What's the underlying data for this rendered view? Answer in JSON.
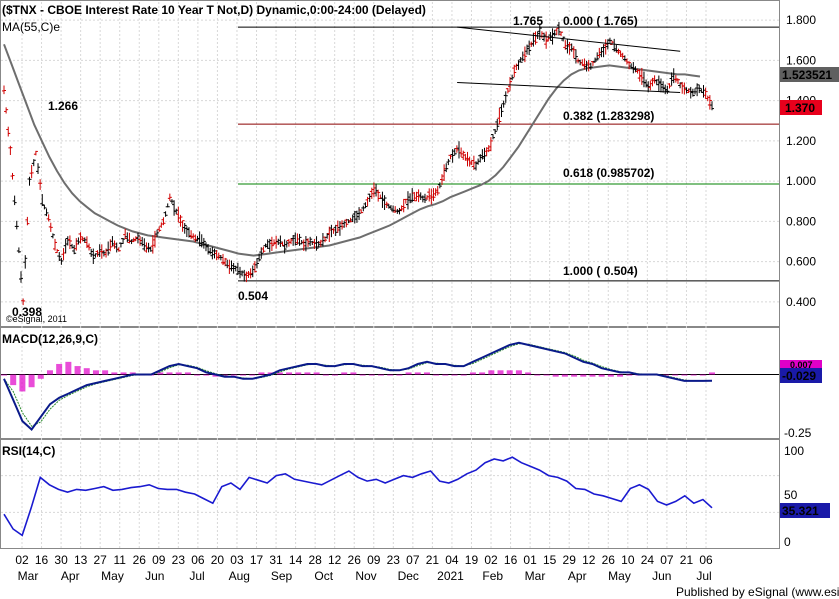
{
  "header": {
    "title": "($TNX - CBOE Interest Rate 10 Year T Not,D) Dynamic,0:00-24:00 (Delayed)",
    "ma_label": "MA(55,C)e",
    "copyright": "©eSignal, 2011",
    "footer": "Published by eSignal (www.esignal.com)"
  },
  "chart_data": {
    "type": "candlestick",
    "symbol": "$TNX",
    "price_axis": {
      "ticks": [
        "1.800",
        "1.600",
        "1.400",
        "1.200",
        "1.000",
        "0.800",
        "0.600",
        "0.400"
      ],
      "ylim": [
        0.28,
        1.89
      ]
    },
    "x_axis": {
      "day_labels": [
        "02",
        "16",
        "30",
        "13",
        "27",
        "11",
        "26",
        "09",
        "23",
        "06",
        "20",
        "03",
        "17",
        "31",
        "14",
        "28",
        "12",
        "26",
        "09",
        "23",
        "07",
        "21",
        "04",
        "19",
        "02",
        "16",
        "01",
        "15",
        "29",
        "12",
        "26",
        "10",
        "24",
        "07",
        "21",
        "06"
      ],
      "month_labels": [
        "Mar",
        "Apr",
        "May",
        "Jun",
        "Jul",
        "Aug",
        "Sep",
        "Oct",
        "Nov",
        "Dec",
        "2021",
        "Feb",
        "Mar",
        "Apr",
        "May",
        "Jun",
        "Jul"
      ]
    },
    "price_series": [
      1.45,
      1.15,
      0.78,
      0.4,
      1.0,
      1.14,
      0.9,
      0.82,
      0.68,
      0.6,
      0.71,
      0.66,
      0.72,
      0.7,
      0.62,
      0.65,
      0.64,
      0.7,
      0.66,
      0.73,
      0.7,
      0.72,
      0.68,
      0.66,
      0.74,
      0.8,
      0.92,
      0.85,
      0.78,
      0.74,
      0.72,
      0.7,
      0.66,
      0.64,
      0.62,
      0.59,
      0.57,
      0.55,
      0.53,
      0.55,
      0.62,
      0.68,
      0.69,
      0.7,
      0.68,
      0.7,
      0.71,
      0.69,
      0.7,
      0.68,
      0.7,
      0.74,
      0.76,
      0.78,
      0.8,
      0.82,
      0.85,
      0.9,
      0.96,
      0.92,
      0.88,
      0.86,
      0.85,
      0.9,
      0.92,
      0.93,
      0.91,
      0.93,
      0.95,
      1.04,
      1.12,
      1.16,
      1.13,
      1.1,
      1.08,
      1.13,
      1.16,
      1.25,
      1.35,
      1.45,
      1.55,
      1.6,
      1.65,
      1.7,
      1.74,
      1.7,
      1.72,
      1.76,
      1.68,
      1.66,
      1.6,
      1.58,
      1.57,
      1.62,
      1.65,
      1.7,
      1.66,
      1.62,
      1.58,
      1.56,
      1.52,
      1.47,
      1.5,
      1.48,
      1.45,
      1.52,
      1.48,
      1.45,
      1.44,
      1.46,
      1.43,
      1.37
    ],
    "moving_average": {
      "name": "MA(55,C)e",
      "last_value": "1.523521",
      "values": [
        1.68,
        1.58,
        1.48,
        1.38,
        1.28,
        1.2,
        1.12,
        1.05,
        0.99,
        0.94,
        0.9,
        0.87,
        0.84,
        0.82,
        0.8,
        0.78,
        0.765,
        0.75,
        0.74,
        0.73,
        0.725,
        0.72,
        0.715,
        0.71,
        0.705,
        0.7,
        0.69,
        0.68,
        0.67,
        0.66,
        0.65,
        0.64,
        0.635,
        0.63,
        0.635,
        0.64,
        0.645,
        0.65,
        0.655,
        0.66,
        0.665,
        0.67,
        0.675,
        0.68,
        0.69,
        0.7,
        0.71,
        0.72,
        0.735,
        0.75,
        0.765,
        0.78,
        0.8,
        0.82,
        0.84,
        0.86,
        0.875,
        0.885,
        0.9,
        0.92,
        0.935,
        0.95,
        0.965,
        0.98,
        1.0,
        1.03,
        1.07,
        1.12,
        1.17,
        1.23,
        1.29,
        1.35,
        1.41,
        1.46,
        1.5,
        1.53,
        1.55,
        1.56,
        1.565,
        1.57,
        1.575,
        1.57,
        1.565,
        1.56,
        1.555,
        1.55,
        1.545,
        1.54,
        1.535,
        1.53,
        1.53,
        1.525,
        1.52
      ]
    },
    "last_price": "1.370",
    "fibonacci": [
      {
        "label": "0.000 ( 1.765)",
        "value": 1.765
      },
      {
        "label": "0.382 (1.283298)",
        "value": 1.283298
      },
      {
        "label": "0.618 (0.985702)",
        "value": 0.985702
      },
      {
        "label": "1.000 ( 0.504)",
        "value": 0.504
      }
    ],
    "annotations": [
      {
        "label": "1.765",
        "value": 1.765
      },
      {
        "label": "1.266",
        "value": 1.266
      },
      {
        "label": "0.504",
        "value": 0.504
      },
      {
        "label": "0.398",
        "value": 0.398
      }
    ],
    "trendlines": {
      "upper": [
        [
          0.64,
          1.765
        ],
        [
          0.955,
          1.645
        ]
      ],
      "lower": [
        [
          0.64,
          1.49
        ],
        [
          0.955,
          1.44
        ]
      ],
      "note": "x as fraction of the time axis, y in price units"
    },
    "macd": {
      "label": "MACD(12,26,9,C)",
      "last_value": "-0.029",
      "signal_marker": "0.007",
      "axis_ticks": [
        "-0.25"
      ],
      "ylim": [
        -0.3,
        0.22
      ],
      "macd_values": [
        -0.02,
        -0.12,
        -0.22,
        -0.26,
        -0.2,
        -0.14,
        -0.11,
        -0.09,
        -0.07,
        -0.05,
        -0.04,
        -0.03,
        -0.02,
        -0.01,
        0.0,
        0.0,
        0.0,
        0.02,
        0.04,
        0.05,
        0.04,
        0.03,
        0.01,
        0.0,
        -0.01,
        -0.01,
        -0.02,
        -0.02,
        -0.01,
        0.0,
        0.02,
        0.03,
        0.04,
        0.05,
        0.05,
        0.04,
        0.04,
        0.05,
        0.05,
        0.04,
        0.04,
        0.03,
        0.02,
        0.02,
        0.03,
        0.05,
        0.06,
        0.05,
        0.05,
        0.04,
        0.04,
        0.06,
        0.08,
        0.1,
        0.12,
        0.14,
        0.15,
        0.14,
        0.13,
        0.12,
        0.11,
        0.1,
        0.08,
        0.06,
        0.05,
        0.03,
        0.02,
        0.01,
        0.01,
        0.0,
        0.0,
        0.0,
        -0.01,
        -0.02,
        -0.03,
        -0.03,
        -0.03,
        -0.029
      ],
      "histogram": [
        0.0,
        -0.05,
        -0.08,
        -0.06,
        -0.02,
        0.02,
        0.05,
        0.06,
        0.04,
        0.03,
        0.02,
        0.02,
        0.01,
        0.01,
        0.01,
        0.0,
        0.0,
        0.01,
        0.01,
        0.01,
        0.01,
        0.0,
        0.0,
        -0.01,
        -0.01,
        0.0,
        0.0,
        0.0,
        0.01,
        0.01,
        0.01,
        0.01,
        0.01,
        0.01,
        0.01,
        0.0,
        0.0,
        0.01,
        0.01,
        0.0,
        0.0,
        0.0,
        0.0,
        0.0,
        0.01,
        0.01,
        0.01,
        0.0,
        0.0,
        0.0,
        0.0,
        0.01,
        0.01,
        0.02,
        0.02,
        0.02,
        0.02,
        0.01,
        0.0,
        0.0,
        -0.01,
        -0.01,
        -0.01,
        -0.01,
        -0.01,
        -0.01,
        -0.01,
        -0.01,
        0.0,
        0.0,
        0.0,
        0.0,
        0.0,
        0.0,
        0.0,
        0.0,
        0.0,
        0.01
      ]
    },
    "rsi": {
      "label": "RSI(14,C)",
      "last_value": "35.321",
      "axis_ticks": [
        "100",
        "50",
        "0"
      ],
      "ylim": [
        0,
        100
      ],
      "values": [
        28,
        12,
        5,
        35,
        68,
        60,
        55,
        52,
        55,
        54,
        56,
        58,
        54,
        55,
        57,
        58,
        60,
        56,
        55,
        55,
        52,
        50,
        45,
        40,
        58,
        62,
        55,
        68,
        65,
        62,
        70,
        72,
        66,
        64,
        62,
        60,
        65,
        70,
        75,
        68,
        64,
        66,
        62,
        66,
        70,
        68,
        72,
        75,
        64,
        62,
        66,
        72,
        76,
        84,
        88,
        86,
        90,
        84,
        80,
        76,
        70,
        68,
        64,
        56,
        55,
        50,
        48,
        45,
        42,
        56,
        60,
        55,
        42,
        38,
        42,
        48,
        40,
        44,
        35
      ]
    }
  }
}
